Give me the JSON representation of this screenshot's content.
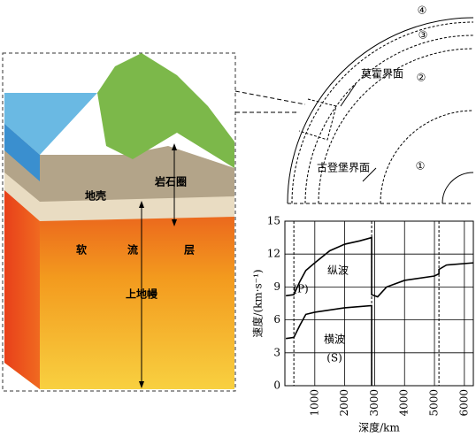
{
  "block_diagram": {
    "labels": {
      "crust": "地壳",
      "lithosphere": "岩石圈",
      "asthenosphere_1": "软",
      "asthenosphere_2": "流",
      "asthenosphere_3": "层",
      "upper_mantle": "上地幔"
    }
  },
  "earth_structure": {
    "layers": [
      "①",
      "②",
      "③",
      "④"
    ],
    "moho": "莫霍界面",
    "gutenberg": "古登堡界面"
  },
  "chart_data": {
    "type": "line",
    "xlabel": "深度/km",
    "ylabel": "速度/(km·s⁻¹)",
    "series": [
      {
        "name": "纵波",
        "abbr": "(P)",
        "color": "#000000",
        "x": [
          33,
          300,
          500,
          700,
          1000,
          1500,
          2000,
          2500,
          2900,
          2900,
          3100,
          3400,
          4000,
          5000,
          5150,
          5150,
          5400,
          6300
        ],
        "values": [
          8.2,
          8.3,
          9.5,
          10.5,
          11.2,
          12.3,
          12.9,
          13.2,
          13.5,
          8.3,
          8.1,
          9.0,
          9.6,
          10.0,
          10.2,
          10.6,
          11.0,
          11.2
        ]
      },
      {
        "name": "横波",
        "abbr": "(S)",
        "color": "#000000",
        "x": [
          33,
          300,
          500,
          700,
          1000,
          2000,
          2900,
          2900
        ],
        "values": [
          4.3,
          4.4,
          5.5,
          6.5,
          6.7,
          7.1,
          7.3,
          0
        ]
      }
    ],
    "xlim": [
      0,
      6300
    ],
    "ylim": [
      0,
      15
    ],
    "xticks": [
      1000,
      2000,
      3000,
      4000,
      5000,
      6000
    ],
    "yticks": [
      0,
      3,
      6,
      9,
      12,
      15
    ],
    "boundaries": [
      300,
      2900,
      5150
    ],
    "grid": true
  }
}
